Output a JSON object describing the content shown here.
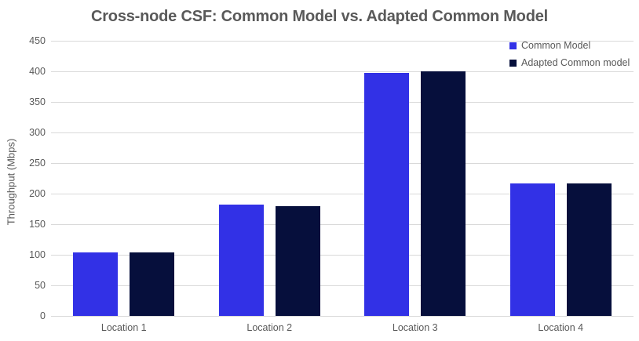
{
  "chart_data": {
    "type": "bar",
    "title": "Cross-node CSF: Common Model vs. Adapted Common Model",
    "ylabel": "Throughput (Mbps)",
    "xlabel": "",
    "categories": [
      "Location 1",
      "Location 2",
      "Location 3",
      "Location 4"
    ],
    "series": [
      {
        "name": "Common Model",
        "color": "#3231e6",
        "values": [
          104,
          182,
          398,
          217
        ]
      },
      {
        "name": "Adapted Common model",
        "color": "#060f3c",
        "values": [
          104,
          180,
          400,
          217
        ]
      }
    ],
    "ylim": [
      0,
      450
    ],
    "ytick_step": 50,
    "grid": true,
    "legend_position": "top-right",
    "colors": {
      "title_text": "#595959",
      "axis_text": "#595959",
      "gridline": "#d9d9d9",
      "background": "#ffffff"
    }
  }
}
